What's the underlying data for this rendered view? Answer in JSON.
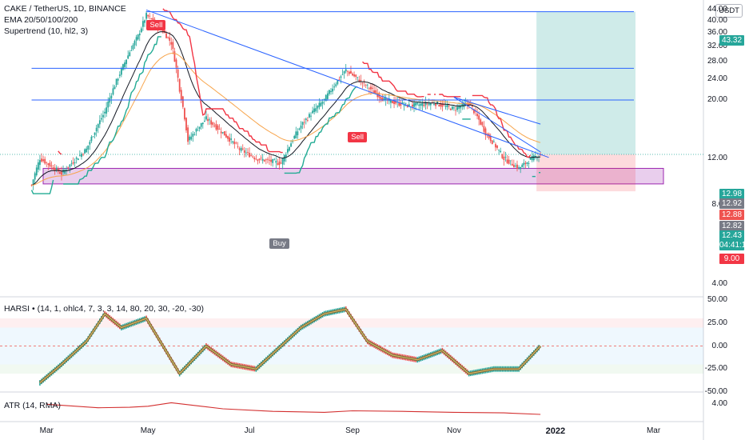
{
  "header": {
    "symbol_line": "CAKE / TetherUS, 1D, BINANCE",
    "ema_line": "EMA 20/50/100/200",
    "supertrend_line": "Supertrend (10, hl2, 3)",
    "currency_button": "USDT"
  },
  "price_axis": {
    "ticks": [
      "44.00",
      "40.00",
      "36.00",
      "32.00",
      "28.00",
      "24.00",
      "20.00",
      "12.00",
      "8.00",
      "4.00"
    ],
    "badges": [
      {
        "text": "43.32",
        "color": "#26a69a"
      },
      {
        "text": "12.98",
        "color": "#26a69a"
      },
      {
        "text": "12.92",
        "color": "#787b86"
      },
      {
        "text": "12.88",
        "color": "#ef5350"
      },
      {
        "text": "12.82",
        "color": "#787b86"
      },
      {
        "text": "12.43",
        "color": "#26a69a"
      },
      {
        "text": "04:41:15",
        "color": "#26a69a"
      },
      {
        "text": "9.00",
        "color": "#f23645"
      }
    ]
  },
  "signals": [
    {
      "text": "Sell",
      "color": "#f23645"
    },
    {
      "text": "Sell",
      "color": "#f23645"
    },
    {
      "text": "Buy",
      "color": "#787b86"
    }
  ],
  "time_axis": {
    "labels": [
      {
        "text": "Mar",
        "bold": false
      },
      {
        "text": "May",
        "bold": false
      },
      {
        "text": "Jul",
        "bold": false
      },
      {
        "text": "Sep",
        "bold": false
      },
      {
        "text": "Nov",
        "bold": false
      },
      {
        "text": "2022",
        "bold": true
      },
      {
        "text": "Mar",
        "bold": false
      }
    ]
  },
  "harsi": {
    "legend": "HARSI • (14, 1, ohlc4, 7, 3, 3, 14, 80, 20, 30, -20, -30)",
    "ticks": [
      "50.00",
      "25.00",
      "0.00",
      "-25.00",
      "-50.00"
    ]
  },
  "atr": {
    "legend": "ATR (14, RMA)",
    "ticks": [
      "4.00"
    ]
  },
  "chart_data": [
    {
      "type": "candlestick",
      "title": "CAKE / TetherUS, 1D, BINANCE",
      "x_range": [
        "2021-02-01",
        "2022-03-31"
      ],
      "ylim": [
        2,
        46
      ],
      "price_path": [
        {
          "x": "2021-02-20",
          "close": 9.5
        },
        {
          "x": "2021-02-25",
          "close": 12.0
        },
        {
          "x": "2021-03-10",
          "close": 10.5
        },
        {
          "x": "2021-03-25",
          "close": 13.0
        },
        {
          "x": "2021-04-05",
          "close": 18.0
        },
        {
          "x": "2021-04-15",
          "close": 26.0
        },
        {
          "x": "2021-04-25",
          "close": 35.0
        },
        {
          "x": "2021-04-30",
          "close": 42.0
        },
        {
          "x": "2021-05-08",
          "close": 38.0
        },
        {
          "x": "2021-05-15",
          "close": 33.0
        },
        {
          "x": "2021-05-20",
          "close": 22.0
        },
        {
          "x": "2021-05-25",
          "close": 14.0
        },
        {
          "x": "2021-06-05",
          "close": 17.0
        },
        {
          "x": "2021-06-15",
          "close": 15.0
        },
        {
          "x": "2021-06-25",
          "close": 13.0
        },
        {
          "x": "2021-07-05",
          "close": 12.0
        },
        {
          "x": "2021-07-20",
          "close": 11.5
        },
        {
          "x": "2021-08-01",
          "close": 16.0
        },
        {
          "x": "2021-08-15",
          "close": 20.0
        },
        {
          "x": "2021-08-28",
          "close": 26.0
        },
        {
          "x": "2021-09-08",
          "close": 23.0
        },
        {
          "x": "2021-09-20",
          "close": 20.0
        },
        {
          "x": "2021-10-05",
          "close": 19.0
        },
        {
          "x": "2021-10-20",
          "close": 19.5
        },
        {
          "x": "2021-11-01",
          "close": 18.5
        },
        {
          "x": "2021-11-10",
          "close": 19.5
        },
        {
          "x": "2021-11-20",
          "close": 15.0
        },
        {
          "x": "2021-12-01",
          "close": 12.0
        },
        {
          "x": "2021-12-10",
          "close": 11.0
        },
        {
          "x": "2021-12-18",
          "close": 12.0
        },
        {
          "x": "2021-12-23",
          "close": 12.43
        }
      ],
      "horizontal_levels": [
        43.32,
        26.4,
        20.0
      ],
      "support_zone": [
        9.6,
        11.0
      ],
      "trendlines": [
        {
          "from": {
            "x": "2021-04-30",
            "y": 44.0
          },
          "to": {
            "x": "2021-12-28",
            "y": 12.1
          }
        },
        {
          "from": {
            "x": "2021-11-01",
            "y": 20.5
          },
          "to": {
            "x": "2021-12-23",
            "y": 16.2
          }
        },
        {
          "from": {
            "x": "2021-11-01",
            "y": 20.5
          },
          "to": {
            "x": "2021-12-23",
            "y": 12.7
          }
        }
      ],
      "position_tool": {
        "entry": 12.43,
        "target": 43.32,
        "stop": 9.0,
        "start": "2021-12-23",
        "end": "2022-02-20"
      }
    },
    {
      "type": "line",
      "title": "HARSI",
      "ylim": [
        -50,
        50
      ],
      "bands": [
        [
          20,
          30
        ],
        [
          -30,
          -20
        ]
      ],
      "x": [
        "2021-02-25",
        "2021-03-10",
        "2021-03-25",
        "2021-04-05",
        "2021-04-15",
        "2021-04-30",
        "2021-05-10",
        "2021-05-20",
        "2021-06-05",
        "2021-06-20",
        "2021-07-05",
        "2021-07-20",
        "2021-08-01",
        "2021-08-15",
        "2021-08-28",
        "2021-09-10",
        "2021-09-25",
        "2021-10-10",
        "2021-10-25",
        "2021-11-10",
        "2021-11-25",
        "2021-12-10",
        "2021-12-23"
      ],
      "values": [
        -40,
        -20,
        5,
        35,
        20,
        30,
        0,
        -30,
        0,
        -20,
        -25,
        0,
        20,
        35,
        40,
        5,
        -10,
        -15,
        -5,
        -30,
        -25,
        -25,
        0
      ]
    },
    {
      "type": "line",
      "title": "ATR (14, RMA)",
      "ylim": [
        0,
        6
      ],
      "x": [
        "2021-03-01",
        "2021-04-01",
        "2021-04-20",
        "2021-05-01",
        "2021-05-15",
        "2021-06-15",
        "2021-07-15",
        "2021-08-15",
        "2021-09-01",
        "2021-10-01",
        "2021-11-01",
        "2021-12-01",
        "2021-12-23"
      ],
      "values": [
        3.9,
        3.2,
        3.3,
        3.5,
        4.2,
        3.0,
        2.5,
        2.3,
        2.6,
        2.5,
        2.3,
        2.2,
        1.9
      ]
    }
  ]
}
